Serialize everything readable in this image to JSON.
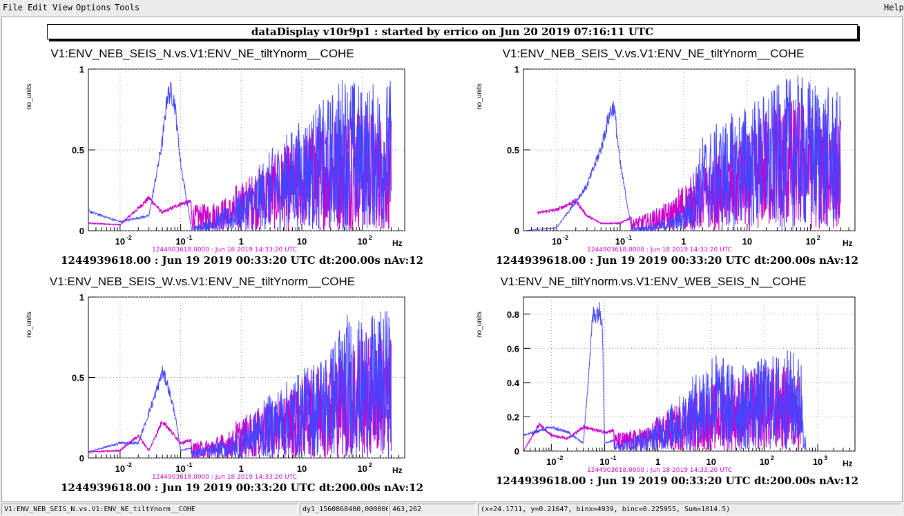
{
  "menubar": {
    "file": "File",
    "edit": "Edit",
    "view": "View",
    "options": "Options",
    "tools": "Tools",
    "help": "Help"
  },
  "canvas_title": "dataDisplay v10r9p1 : started by errico on Jun 20 2019 07:16:11 UTC",
  "colors": {
    "trace_ref": "#cc00cc",
    "trace_cur": "#4444ff",
    "stamp_ref": "#cc00cc"
  },
  "plots": [
    {
      "title": "V1:ENV_NEB_SEIS_N.vs.V1:ENV_NE_tiltYnorm__COHE",
      "ylabel": "no_units",
      "yticks": [
        "0",
        "0.5",
        "1"
      ],
      "xticks": [
        "10",
        "10",
        "1",
        "10",
        "10"
      ],
      "xexps": [
        "-2",
        "-1",
        "",
        "",
        "2"
      ],
      "xunit": "Hz",
      "ref_stamp": "1244903618.0000 : Jun 18 2019 14:33:20 UTC",
      "stamp": "1244939618.00 : Jun 19 2019 00:33:20 UTC dt:200.00s nAv:12"
    },
    {
      "title": "V1:ENV_NEB_SEIS_V.vs.V1:ENV_NE_tiltYnorm__COHE",
      "ylabel": "no_units",
      "yticks": [
        "0",
        "0.5",
        "1"
      ],
      "xticks": [
        "10",
        "10",
        "1",
        "10",
        "10"
      ],
      "xexps": [
        "-2",
        "-1",
        "",
        "",
        "2"
      ],
      "xunit": "Hz",
      "ref_stamp": "1244903618.0000 : Jun 18 2019 14:33:20 UTC",
      "stamp": "1244939618.00 : Jun 19 2019 00:33:20 UTC dt:200.00s nAv:12"
    },
    {
      "title": "V1:ENV_NEB_SEIS_W.vs.V1:ENV_NE_tiltYnorm__COHE",
      "ylabel": "no_units",
      "yticks": [
        "0",
        "0.5",
        "1"
      ],
      "xticks": [
        "10",
        "10",
        "1",
        "10",
        "10"
      ],
      "xexps": [
        "-2",
        "-1",
        "",
        "",
        "2"
      ],
      "xunit": "Hz",
      "ref_stamp": "1244903618.0000 : Jun 18 2019 14:33:20 UTC",
      "stamp": "1244939618.00 : Jun 19 2019 00:33:20 UTC dt:200.00s nAv:12"
    },
    {
      "title": "V1:ENV_NE_tiltYnorm.vs.V1:ENV_WEB_SEIS_N__COHE",
      "ylabel": "no_units",
      "yticks": [
        "0",
        "0.2",
        "0.4",
        "0.6",
        "0.8"
      ],
      "xticks": [
        "10",
        "10",
        "1",
        "10",
        "10",
        "10"
      ],
      "xexps": [
        "-2",
        "-1",
        "",
        "",
        "2",
        "3"
      ],
      "xunit": "Hz",
      "ref_stamp": "1244903618.0000 : Jun 18 2019 14:33:20 UTC",
      "stamp": "1244939618.00 : Jun 19 2019 00:33:20 UTC dt:200.00s nAv:12"
    }
  ],
  "statusbar": {
    "object": "V1:ENV_NEB_SEIS_N.vs.V1:ENV_NE_tiltYnorm__COHE",
    "trace": "dy1_1560868400,000000",
    "pixel": "463,262",
    "info": "(x=24.1711, y=0.21647, binx=4939, binc=0.225955, Sum=1014.5)"
  },
  "chart_data": [
    {
      "type": "line",
      "title": "V1:ENV_NEB_SEIS_N.vs.V1:ENV_NE_tiltYnorm__COHE",
      "ylabel": "no_units",
      "xlabel": "Hz",
      "xscale": "log",
      "xlim": [
        0.003,
        500
      ],
      "ylim": [
        0,
        1
      ],
      "grid": true,
      "series": [
        {
          "x": [
            0.003,
            0.01,
            0.03,
            0.05,
            0.06,
            0.07,
            0.08,
            0.1,
            0.15,
            0.3,
            1,
            3,
            10,
            30,
            50,
            100,
            300
          ],
          "y": [
            0.13,
            0.06,
            0.1,
            0.6,
            0.9,
            0.93,
            0.85,
            0.45,
            0.02,
            0.1,
            0.25,
            0.5,
            0.7,
            0.85,
            1.0,
            0.9,
            0.95
          ]
        },
        {
          "x": [
            0.003,
            0.01,
            0.02,
            0.03,
            0.05,
            0.1,
            0.3,
            1,
            3,
            10,
            30,
            100,
            300
          ],
          "y": [
            0.05,
            0.04,
            0.15,
            0.22,
            0.12,
            0.18,
            0.22,
            0.3,
            0.45,
            0.6,
            0.75,
            0.8,
            0.7
          ]
        }
      ]
    },
    {
      "type": "line",
      "title": "V1:ENV_NEB_SEIS_V.vs.V1:ENV_NE_tiltYnorm__COHE",
      "ylabel": "no_units",
      "xlabel": "Hz",
      "xscale": "log",
      "xlim": [
        0.003,
        500
      ],
      "ylim": [
        0,
        1
      ],
      "grid": true,
      "series": [
        {
          "x": [
            0.003,
            0.01,
            0.03,
            0.05,
            0.07,
            0.08,
            0.1,
            0.15,
            0.3,
            1,
            2,
            10,
            30,
            50,
            100,
            300
          ],
          "y": [
            0.0,
            0.02,
            0.3,
            0.55,
            0.8,
            0.83,
            0.45,
            0.02,
            0.05,
            0.15,
            0.6,
            0.8,
            0.9,
            0.97,
            0.95,
            0.85
          ]
        },
        {
          "x": [
            0.005,
            0.01,
            0.02,
            0.03,
            0.05,
            0.1,
            0.3,
            1,
            3,
            10,
            30,
            100,
            300
          ],
          "y": [
            0.12,
            0.14,
            0.2,
            0.1,
            0.05,
            0.05,
            0.15,
            0.3,
            0.45,
            0.6,
            0.85,
            0.8,
            0.7
          ]
        }
      ]
    },
    {
      "type": "line",
      "title": "V1:ENV_NEB_SEIS_W.vs.V1:ENV_NE_tiltYnorm__COHE",
      "ylabel": "no_units",
      "xlabel": "Hz",
      "xscale": "log",
      "xlim": [
        0.003,
        500
      ],
      "ylim": [
        0,
        1
      ],
      "grid": true,
      "series": [
        {
          "x": [
            0.003,
            0.01,
            0.02,
            0.04,
            0.05,
            0.06,
            0.08,
            0.1,
            0.3,
            1,
            3,
            10,
            30,
            50,
            100,
            300
          ],
          "y": [
            0.04,
            0.1,
            0.1,
            0.45,
            0.58,
            0.5,
            0.3,
            0.05,
            0.1,
            0.2,
            0.4,
            0.55,
            0.7,
            0.92,
            0.85,
            0.95
          ]
        },
        {
          "x": [
            0.003,
            0.01,
            0.02,
            0.03,
            0.05,
            0.1,
            0.3,
            1,
            3,
            10,
            30,
            100,
            300
          ],
          "y": [
            0.04,
            0.05,
            0.15,
            0.05,
            0.25,
            0.1,
            0.15,
            0.25,
            0.35,
            0.5,
            0.65,
            0.8,
            0.75
          ]
        }
      ]
    },
    {
      "type": "line",
      "title": "V1:ENV_NE_tiltYnorm.vs.V1:ENV_WEB_SEIS_N__COHE",
      "ylabel": "no_units",
      "xlabel": "Hz",
      "xscale": "log",
      "xlim": [
        0.003,
        5000
      ],
      "ylim": [
        0,
        0.9
      ],
      "grid": true,
      "series": [
        {
          "x": [
            0.003,
            0.01,
            0.02,
            0.04,
            0.06,
            0.07,
            0.08,
            0.09,
            0.1,
            0.3,
            1,
            3,
            10,
            30,
            100,
            300,
            500,
            600
          ],
          "y": [
            0.1,
            0.15,
            0.12,
            0.05,
            0.85,
            0.88,
            0.88,
            0.85,
            0.05,
            0.1,
            0.2,
            0.35,
            0.6,
            0.5,
            0.55,
            0.6,
            0.55,
            0.0
          ]
        },
        {
          "x": [
            0.003,
            0.006,
            0.01,
            0.02,
            0.04,
            0.1,
            0.3,
            1,
            3,
            10,
            30,
            100,
            300,
            500
          ],
          "y": [
            0.0,
            0.17,
            0.1,
            0.08,
            0.15,
            0.12,
            0.15,
            0.2,
            0.3,
            0.4,
            0.45,
            0.5,
            0.5,
            0.45
          ]
        }
      ]
    }
  ]
}
